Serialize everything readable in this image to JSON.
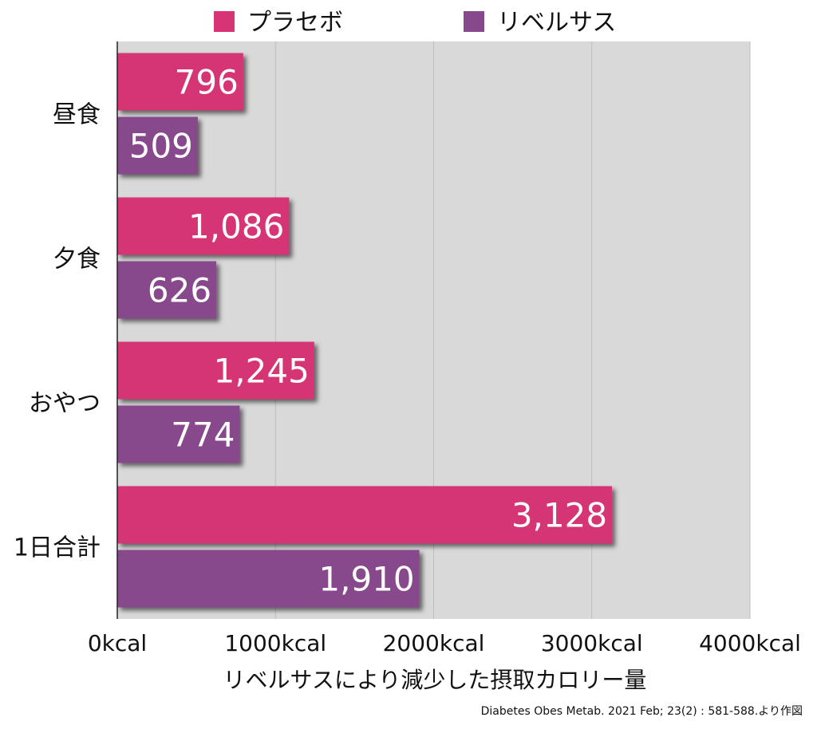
{
  "chart_data": {
    "type": "bar",
    "orientation": "horizontal",
    "categories": [
      "昼食",
      "夕食",
      "おやつ",
      "1日合計"
    ],
    "series": [
      {
        "name": "プラセボ",
        "values": [
          796,
          1086,
          1245,
          3128
        ],
        "labels": [
          "796",
          "1,086",
          "1,245",
          "3,128"
        ],
        "color": "#d63474"
      },
      {
        "name": "リベルサス",
        "values": [
          509,
          626,
          774,
          1910
        ],
        "labels": [
          "509",
          "626",
          "774",
          "1,910"
        ],
        "color": "#88488c"
      }
    ],
    "x_ticks": [
      0,
      1000,
      2000,
      3000,
      4000
    ],
    "x_tick_labels": [
      "0kcal",
      "1000kcal",
      "2000kcal",
      "3000kcal",
      "4000kcal"
    ],
    "xlim": [
      0,
      4000
    ],
    "xlabel": "リベルサスにより減少した摂取カロリー量",
    "legend_position": "top",
    "grid": true,
    "plot_background": "#d9d9d9"
  },
  "source": "Diabetes Obes Metab. 2021 Feb; 23(2) : 581-588.より作図"
}
